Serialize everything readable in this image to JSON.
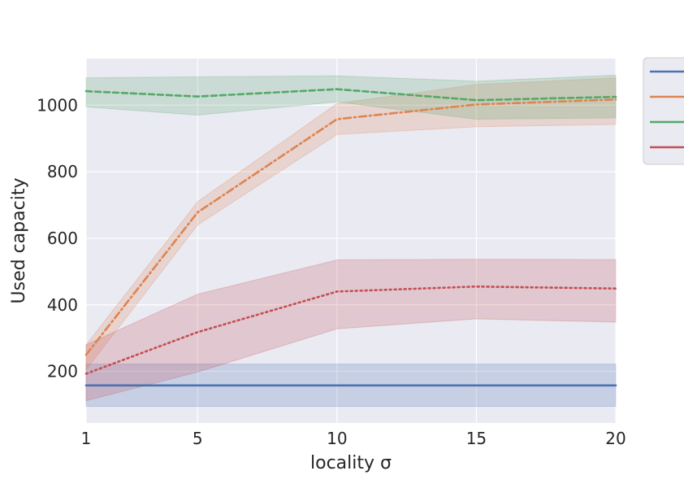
{
  "chart_data": {
    "type": "line",
    "xlabel": "locality σ",
    "ylabel": "Used capacity",
    "x": [
      1,
      5,
      10,
      15,
      20
    ],
    "xticks": [
      1,
      5,
      10,
      15,
      20
    ],
    "xlim": [
      1,
      20
    ],
    "yticks": [
      200,
      400,
      600,
      800,
      1000
    ],
    "ylim": [
      45,
      1140
    ],
    "grid": true,
    "legend_position": "outside-right",
    "series": [
      {
        "color": "#4c72b0",
        "dash": "solid",
        "values": [
          158,
          158,
          158,
          158,
          158
        ],
        "lower": [
          95,
          95,
          95,
          95,
          95
        ],
        "upper": [
          222,
          222,
          222,
          222,
          222
        ]
      },
      {
        "color": "#dd8452",
        "dash": "dashdot",
        "values": [
          250,
          678,
          958,
          1002,
          1017
        ],
        "lower": [
          205,
          640,
          912,
          935,
          942
        ],
        "upper": [
          280,
          710,
          1005,
          1062,
          1082
        ]
      },
      {
        "color": "#55a868",
        "dash": "dashed",
        "values": [
          1042,
          1026,
          1048,
          1015,
          1025
        ],
        "lower": [
          995,
          970,
          1010,
          958,
          962
        ],
        "upper": [
          1082,
          1085,
          1088,
          1072,
          1090
        ]
      },
      {
        "color": "#c44e52",
        "dash": "dotted",
        "values": [
          193,
          318,
          440,
          455,
          449
        ],
        "lower": [
          112,
          198,
          328,
          358,
          348
        ],
        "upper": [
          280,
          432,
          535,
          537,
          536
        ]
      }
    ]
  }
}
